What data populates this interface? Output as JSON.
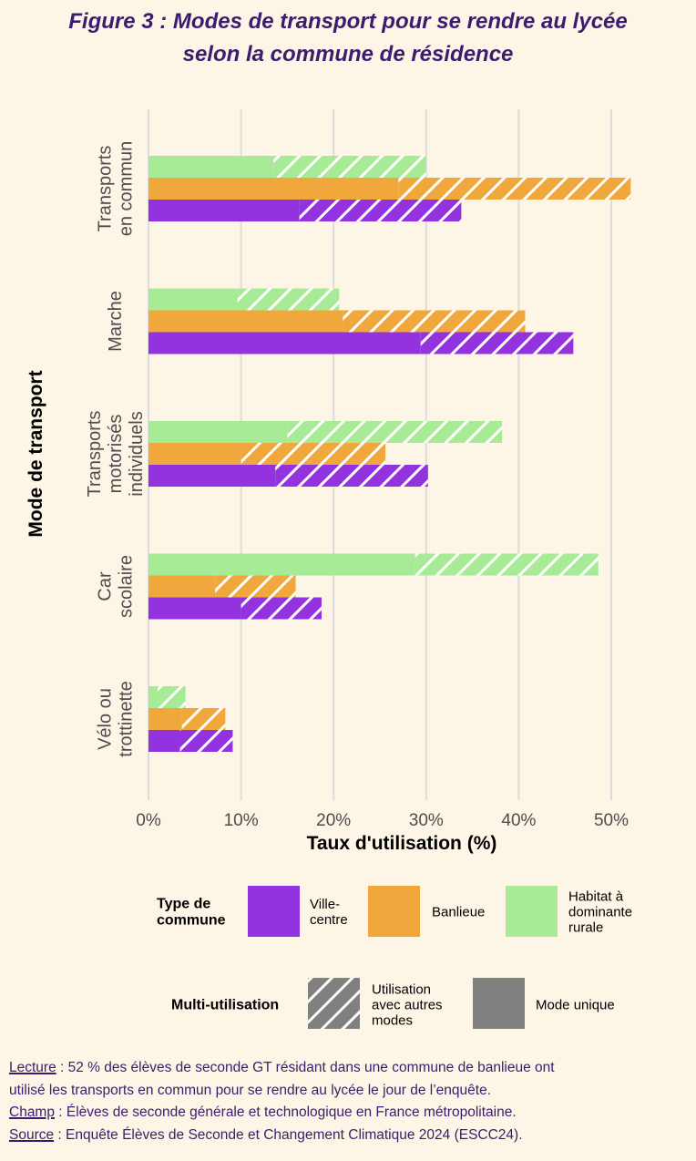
{
  "title_lines": [
    "Figure 3 : Modes de transport pour se rendre au lycée",
    "selon la commune de résidence"
  ],
  "chart_data": {
    "type": "bar",
    "orientation": "horizontal",
    "stacked_pattern": true,
    "xlabel": "Taux d'utilisation (%)",
    "ylabel": "Mode de transport",
    "xlim": [
      0,
      52
    ],
    "xticks": [
      0,
      10,
      20,
      30,
      40,
      50
    ],
    "xtick_labels": [
      "0%",
      "10%",
      "20%",
      "30%",
      "40%",
      "50%"
    ],
    "grid": true,
    "categories": [
      [
        "Transports",
        "en commun"
      ],
      [
        "Marche"
      ],
      [
        "Transports",
        "motorisés",
        "individuels"
      ],
      [
        "Car",
        "scolaire"
      ],
      [
        "Vélo ou",
        "trottinette"
      ]
    ],
    "series": [
      {
        "name": "Habitat à dominante rurale",
        "color": "#a8eb96",
        "unique": [
          13.5,
          9.6,
          15.0,
          28.8,
          1.0
        ],
        "total": [
          30.0,
          20.6,
          38.2,
          48.6,
          4.0
        ]
      },
      {
        "name": "Banlieue",
        "color": "#f0a83c",
        "unique": [
          27.0,
          21.0,
          10.0,
          7.2,
          3.6
        ],
        "total": [
          52.1,
          40.7,
          25.6,
          15.9,
          8.3
        ]
      },
      {
        "name": "Ville-centre",
        "color": "#9333e0",
        "unique": [
          16.3,
          29.4,
          13.7,
          10.0,
          3.4
        ],
        "total": [
          33.8,
          45.9,
          30.2,
          18.7,
          9.1
        ]
      }
    ]
  },
  "legend": {
    "type_title": [
      "Type de",
      "commune"
    ],
    "types": [
      {
        "label": [
          "Ville-",
          "centre"
        ],
        "color": "#9333e0"
      },
      {
        "label": [
          "Banlieue"
        ],
        "color": "#f0a83c"
      },
      {
        "label": [
          "Habitat à",
          "dominante",
          "rurale"
        ],
        "color": "#a8eb96"
      }
    ],
    "multi_title": "Multi-utilisation",
    "multi_items": [
      {
        "label": [
          "Utilisation",
          "avec autres",
          "modes"
        ],
        "color": "#808080",
        "hatched": true
      },
      {
        "label": [
          "Mode unique"
        ],
        "color": "#808080",
        "hatched": false
      }
    ]
  },
  "notes": {
    "lecture_key": "Lecture",
    "lecture_text_1": " : 52 % des élèves de seconde GT résidant dans une commune de banlieue ont",
    "lecture_text_2": "utilisé les transports en commun pour se rendre au lycée le jour de l’enquête.",
    "champ_key": "Champ",
    "champ_text": " : Élèves de seconde générale et technologique en France métropolitaine.",
    "source_key": "Source",
    "source_text": " : Enquête Élèves de Seconde et Changement Climatique 2024 (ESCC24)."
  }
}
